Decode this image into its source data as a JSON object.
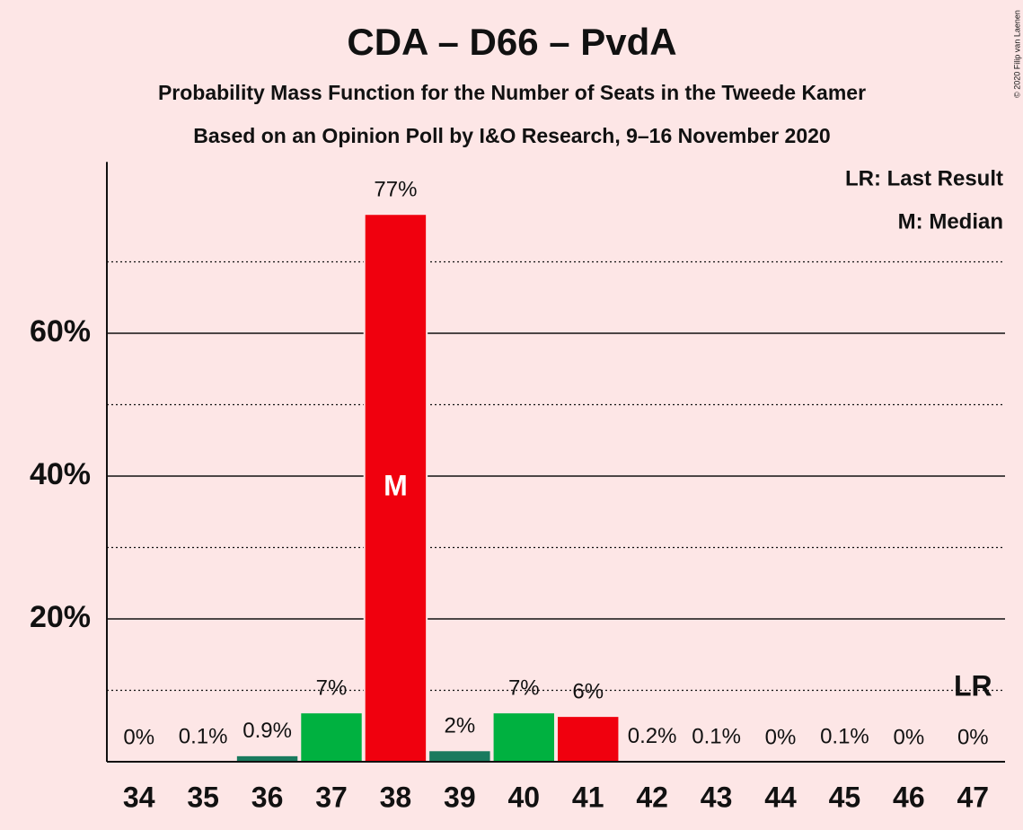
{
  "chart_data": {
    "type": "bar",
    "title": "CDA – D66 – PvdA",
    "subtitle": "Probability Mass Function for the Number of Seats in the Tweede Kamer",
    "subtitle2": "Based on an Opinion Poll by I&O Research, 9–16 November 2020",
    "copyright": "© 2020 Filip van Laenen",
    "legend_notes": [
      "LR: Last Result",
      "M: Median"
    ],
    "categories": [
      "34",
      "35",
      "36",
      "37",
      "38",
      "39",
      "40",
      "41",
      "42",
      "43",
      "44",
      "45",
      "46",
      "47"
    ],
    "values": [
      0,
      0.1,
      0.9,
      6.9,
      76.7,
      1.6,
      6.9,
      6.4,
      0.2,
      0.1,
      0,
      0.1,
      0,
      0
    ],
    "value_labels": [
      "0%",
      "0.1%",
      "0.9%",
      "7%",
      "77%",
      "2%",
      "7%",
      "6%",
      "0.2%",
      "0.1%",
      "0%",
      "0.1%",
      "0%",
      "0%"
    ],
    "colors": [
      "#00b140",
      "#f0000e",
      "#1a7a5e",
      "#00b140",
      "#f0000e",
      "#1a7a5e",
      "#00b140",
      "#f0000e",
      "#1a7a5e",
      "#00b140",
      "#f0000e",
      "#1a7a5e",
      "#00b140",
      "#f0000e"
    ],
    "median": {
      "label": "M",
      "category": "38"
    },
    "last_result": {
      "label": "LR",
      "category": "47"
    },
    "ylim": [
      0,
      84
    ],
    "yticks": [
      {
        "value": 20,
        "label": "20%"
      },
      {
        "value": 40,
        "label": "40%"
      },
      {
        "value": 60,
        "label": "60%"
      }
    ],
    "minor_yticks": [
      10,
      30,
      50,
      70
    ],
    "grid": true
  }
}
